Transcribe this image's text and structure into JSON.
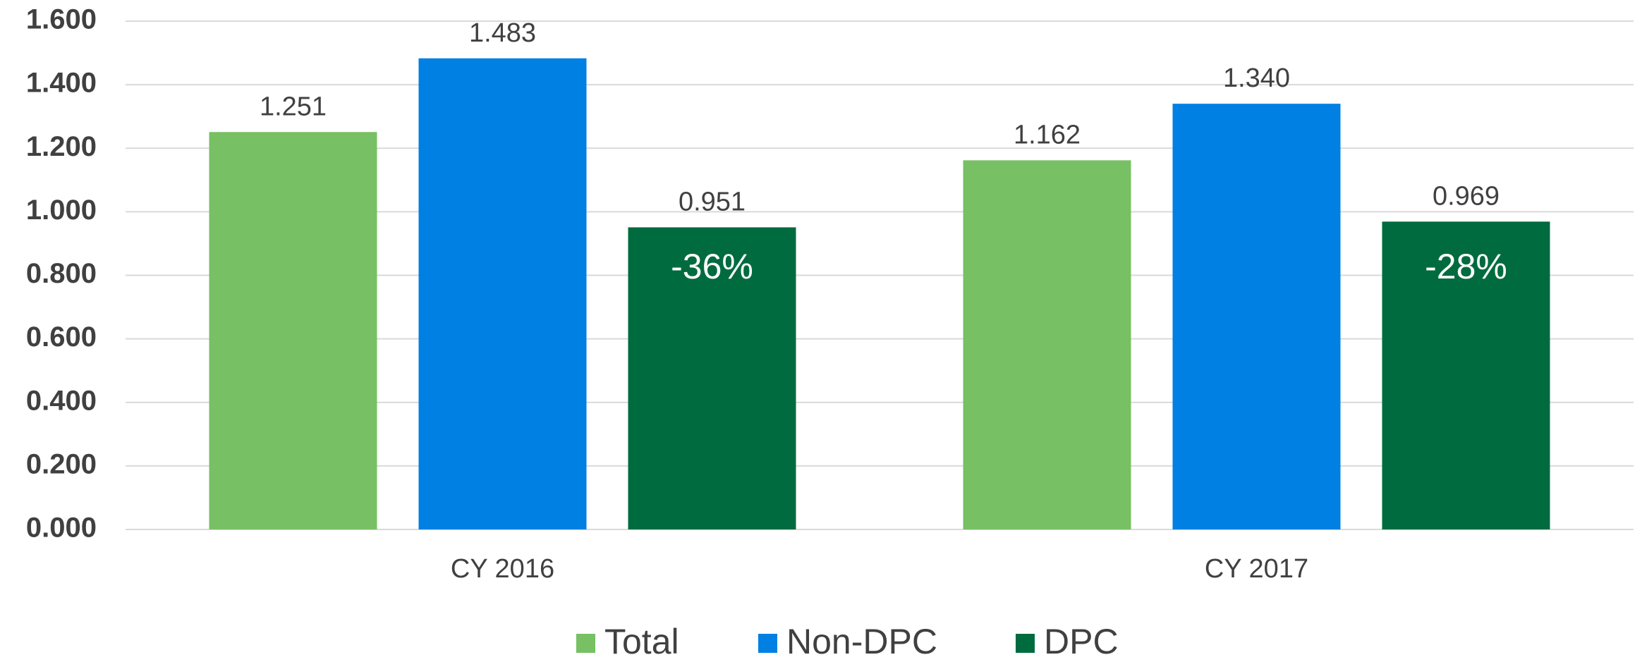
{
  "chart_data": {
    "type": "bar",
    "categories": [
      "CY 2016",
      "CY 2017"
    ],
    "series": [
      {
        "name": "Total",
        "color": "#77c063",
        "values": [
          1.251,
          1.162
        ]
      },
      {
        "name": "Non-DPC",
        "color": "#0080e2",
        "values": [
          1.483,
          1.34
        ],
        "value_labels": [
          "1.483",
          "1.340"
        ]
      },
      {
        "name": "DPC",
        "color": "#006b3f",
        "values": [
          0.951,
          0.969
        ],
        "annotations": [
          "-36%",
          "-28%"
        ]
      }
    ],
    "ylim": [
      0,
      1.6
    ],
    "yticks": [
      {
        "value": 0,
        "label": "0.000"
      },
      {
        "value": 0.2,
        "label": "0.200"
      },
      {
        "value": 0.4,
        "label": "0.400"
      },
      {
        "value": 0.6,
        "label": "0.600"
      },
      {
        "value": 0.8,
        "label": "0.800"
      },
      {
        "value": 1.0,
        "label": "1.000"
      },
      {
        "value": 1.2,
        "label": "1.200"
      },
      {
        "value": 1.4,
        "label": "1.400"
      },
      {
        "value": 1.6,
        "label": "1.600"
      }
    ],
    "grid": true,
    "legend": "bottom"
  }
}
